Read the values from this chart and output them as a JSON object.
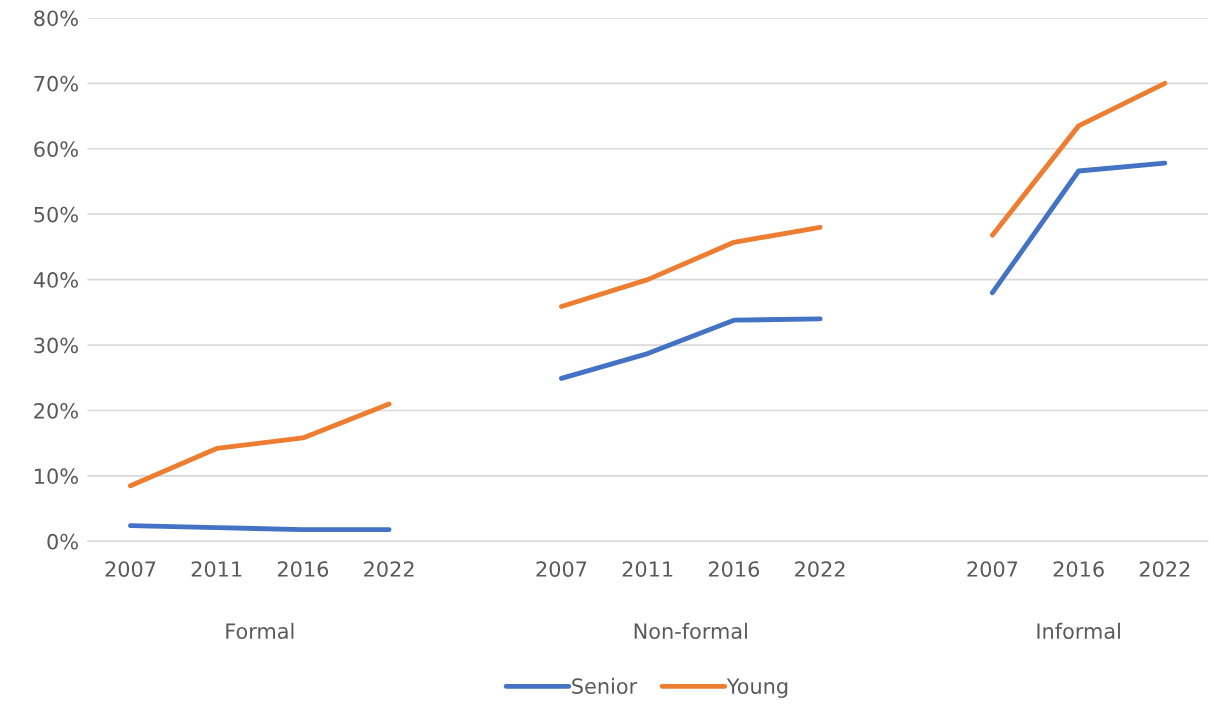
{
  "chart_data": {
    "type": "line",
    "categories": [
      "2007",
      "2011",
      "2016",
      "2022",
      null,
      "2007",
      "2011",
      "2016",
      "2022",
      null,
      "2007",
      "2016",
      "2022"
    ],
    "series": [
      {
        "name": "Senior",
        "color": "#4472c4",
        "values": [
          2.4,
          2.1,
          1.8,
          1.8,
          null,
          24.9,
          28.7,
          33.8,
          34.0,
          null,
          38.0,
          56.6,
          57.8
        ]
      },
      {
        "name": "Young",
        "color": "#ed7d31",
        "values": [
          8.5,
          14.2,
          15.8,
          21.0,
          null,
          35.9,
          40.0,
          45.7,
          48.0,
          null,
          46.8,
          63.5,
          70.0
        ]
      }
    ],
    "annotations": [
      "Formal",
      "Non-formal",
      "Informal"
    ],
    "ylim": [
      0,
      80
    ],
    "yticks": [
      {
        "value": 0,
        "label": "0%"
      },
      {
        "value": 10,
        "label": "10%"
      },
      {
        "value": 20,
        "label": "20%"
      },
      {
        "value": 30,
        "label": "30%"
      },
      {
        "value": 40,
        "label": "40%"
      },
      {
        "value": 50,
        "label": "50%"
      },
      {
        "value": 60,
        "label": "60%"
      },
      {
        "value": 70,
        "label": "70%"
      },
      {
        "value": 80,
        "label": "80%"
      }
    ],
    "grid": "y",
    "legend": "bottom",
    "marker": "none",
    "line_style": "solid"
  }
}
